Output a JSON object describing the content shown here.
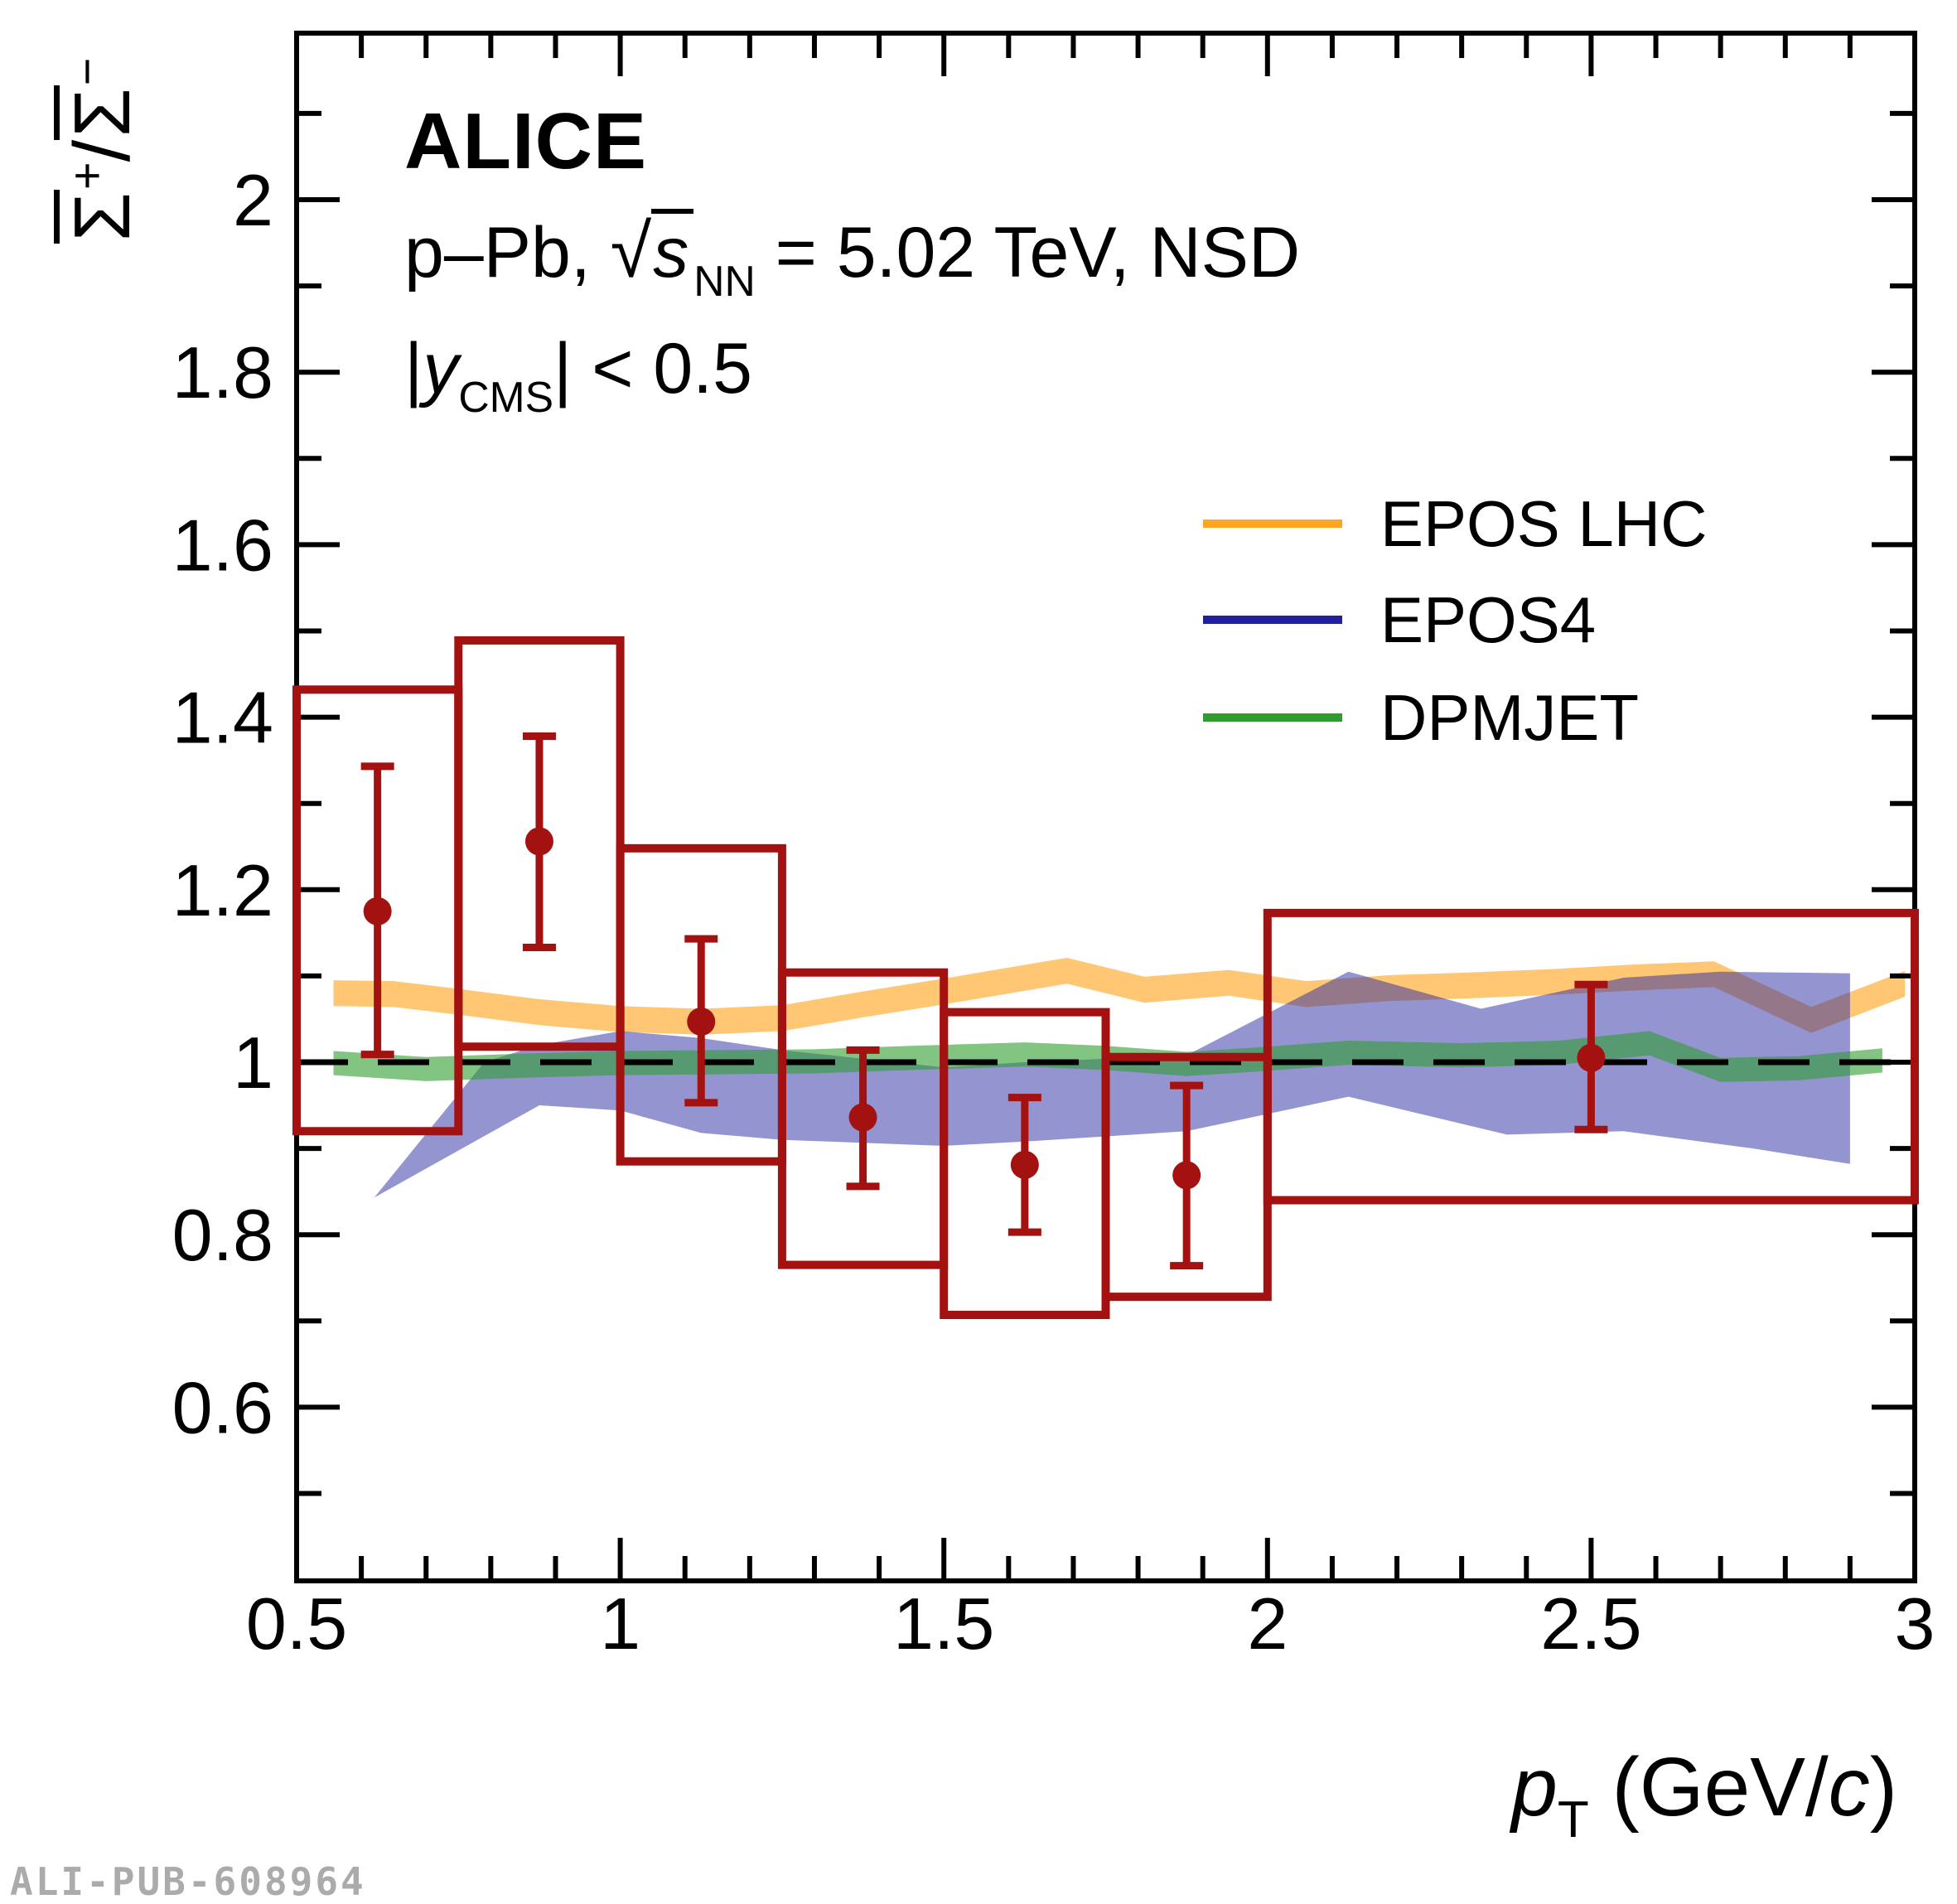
{
  "header": {
    "alice": "ALICE",
    "line2": {
      "prefix": "p–Pb, ",
      "sqrt": "√",
      "s": "s",
      "sub": "NN",
      "rest": " = 5.02 TeV, NSD"
    },
    "line3": {
      "bar1": "|",
      "y": "y",
      "sub": "CMS",
      "rest": "| < 0.5"
    }
  },
  "legend": {
    "items": [
      {
        "label": "EPOS LHC",
        "color": "#FFA51F"
      },
      {
        "label": "EPOS4",
        "color": "#20209F"
      },
      {
        "label": "DPMJET",
        "color": "#2E9C2E"
      }
    ]
  },
  "axes": {
    "x_title": {
      "p": "p",
      "sub": "T",
      "mid": " (GeV/",
      "c": "c",
      "close": ")"
    },
    "y_title": {
      "sigma1": "Σ",
      "plus": "+",
      "slash": "/",
      "sigma2": "Σ",
      "minus": "−"
    }
  },
  "watermark": "ALI-PUB-608964",
  "chart_data": {
    "type": "scatter",
    "title": "ALICE p–Pb √sNN = 5.02 TeV NSD, |yCMS| < 0.5",
    "xlabel": "pT (GeV/c)",
    "ylabel": "antiSigma+ / antiSigma-",
    "xlim": [
      0.5,
      3.0
    ],
    "ylim": [
      0.399,
      2.193
    ],
    "grid": false,
    "legend_position": "upper right",
    "xticks_major": [
      0.5,
      1,
      1.5,
      2,
      2.5,
      3
    ],
    "xtick_labels": [
      "0.5",
      "1",
      "1.5",
      "2",
      "2.5",
      "3"
    ],
    "yticks_major": [
      0.6,
      0.8,
      1.0,
      1.2,
      1.4,
      1.6,
      1.8,
      2.0
    ],
    "ytick_labels": [
      "0.6",
      "0.8",
      "1",
      "1.2",
      "1.4",
      "1.6",
      "1.8",
      "2"
    ],
    "minor_tick_step": 0.1,
    "reference_line_y": 1.0,
    "frame_color": "#000000",
    "data_points": {
      "name": "ALICE data (stat errors + systematic boxes)",
      "color": "#A31111",
      "x": [
        0.625,
        0.875,
        1.125,
        1.375,
        1.625,
        1.875,
        2.5
      ],
      "y": [
        1.175,
        1.256,
        1.047,
        0.936,
        0.881,
        0.869,
        1.005
      ],
      "yerr_up": [
        0.168,
        0.122,
        0.096,
        0.078,
        0.078,
        0.104,
        0.085
      ],
      "yerr_down": [
        0.166,
        0.123,
        0.094,
        0.08,
        0.078,
        0.105,
        0.083
      ],
      "sys_boxes": [
        {
          "x1": 0.5,
          "x2": 0.75,
          "y1": 0.92,
          "y2": 1.432
        },
        {
          "x1": 0.75,
          "x2": 1.0,
          "y1": 1.018,
          "y2": 1.489
        },
        {
          "x1": 1.0,
          "x2": 1.25,
          "y1": 0.885,
          "y2": 1.248
        },
        {
          "x1": 1.25,
          "x2": 1.5,
          "y1": 0.765,
          "y2": 1.104
        },
        {
          "x1": 1.5,
          "x2": 1.75,
          "y1": 0.707,
          "y2": 1.058
        },
        {
          "x1": 1.75,
          "x2": 2.0,
          "y1": 0.728,
          "y2": 1.006
        },
        {
          "x1": 2.0,
          "x2": 3.0,
          "y1": 0.84,
          "y2": 1.173
        }
      ]
    },
    "bands": [
      {
        "name": "EPOS LHC",
        "color": "#FFA51F",
        "opacity": 0.62,
        "mode": "center",
        "half_width": 0.015,
        "points": [
          [
            0.557,
            1.08
          ],
          [
            0.65,
            1.079
          ],
          [
            0.75,
            1.07
          ],
          [
            0.875,
            1.058
          ],
          [
            1.0,
            1.05
          ],
          [
            1.125,
            1.047
          ],
          [
            1.25,
            1.051
          ],
          [
            1.375,
            1.067
          ],
          [
            1.5,
            1.082
          ],
          [
            1.69,
            1.106
          ],
          [
            1.81,
            1.084
          ],
          [
            1.94,
            1.092
          ],
          [
            2.06,
            1.079
          ],
          [
            2.19,
            1.086
          ],
          [
            2.31,
            1.089
          ],
          [
            2.44,
            1.093
          ],
          [
            2.56,
            1.098
          ],
          [
            2.69,
            1.102
          ],
          [
            2.84,
            1.049
          ],
          [
            2.985,
            1.091
          ]
        ]
      },
      {
        "name": "EPOS4",
        "color": "#20209F",
        "opacity": 0.48,
        "mode": "edges",
        "x_top": [
          0.62,
          0.79,
          0.875,
          1.0,
          1.125,
          1.25,
          1.5,
          1.625,
          1.875,
          2.125,
          2.33,
          2.55,
          2.7,
          2.9
        ],
        "top": [
          0.843,
          1.0,
          1.02,
          1.036,
          1.028,
          1.014,
          0.994,
          1.0,
          1.008,
          1.105,
          1.062,
          1.098,
          1.105,
          1.103
        ],
        "x_bottom": [
          0.62,
          0.875,
          1.0,
          1.125,
          1.25,
          1.5,
          1.625,
          1.875,
          2.125,
          2.37,
          2.55,
          2.75,
          2.9
        ],
        "bottom": [
          0.843,
          0.95,
          0.944,
          0.918,
          0.91,
          0.903,
          0.908,
          0.92,
          0.96,
          0.916,
          0.92,
          0.9,
          0.882
        ]
      },
      {
        "name": "DPMJET",
        "color": "#2E9C2E",
        "opacity": 0.6,
        "mode": "center",
        "half_width": 0.014,
        "points": [
          [
            0.557,
            0.999
          ],
          [
            0.7,
            0.992
          ],
          [
            0.85,
            0.996
          ],
          [
            1.0,
            0.999
          ],
          [
            1.15,
            1.0
          ],
          [
            1.3,
            1.001
          ],
          [
            1.45,
            1.005
          ],
          [
            1.625,
            1.009
          ],
          [
            1.75,
            1.005
          ],
          [
            1.875,
            0.998
          ],
          [
            2.0,
            1.004
          ],
          [
            2.125,
            1.011
          ],
          [
            2.3,
            1.008
          ],
          [
            2.45,
            1.011
          ],
          [
            2.59,
            1.022
          ],
          [
            2.7,
            0.991
          ],
          [
            2.82,
            0.993
          ],
          [
            2.95,
            1.002
          ]
        ]
      }
    ]
  }
}
